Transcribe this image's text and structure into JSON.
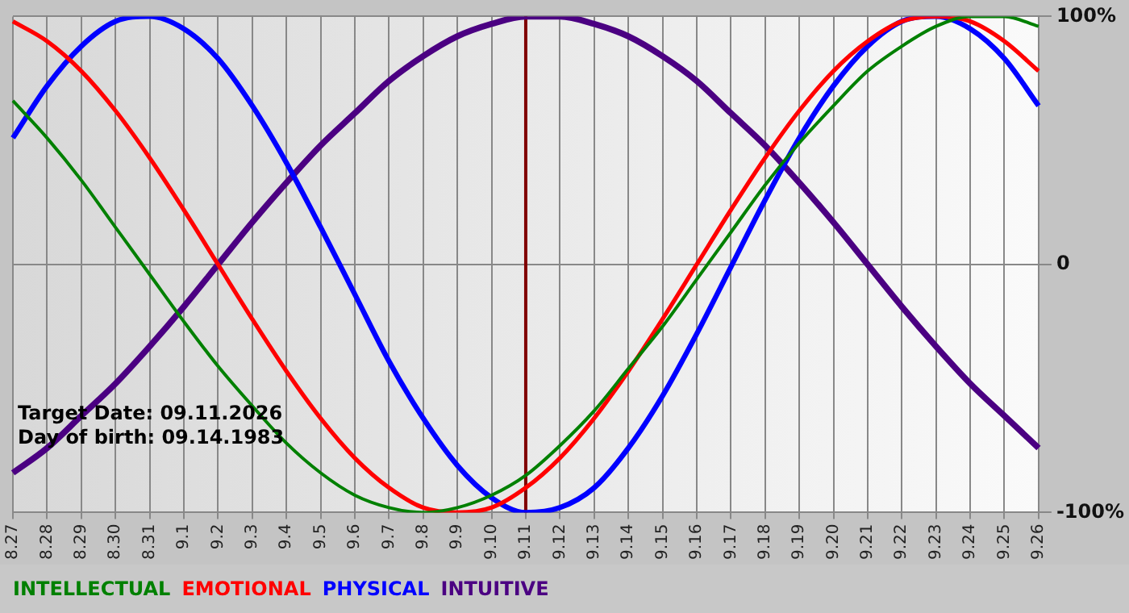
{
  "chart_data": {
    "type": "line",
    "categories": [
      "8.27",
      "8.28",
      "8.29",
      "8.30",
      "8.31",
      "9.1",
      "9.2",
      "9.3",
      "9.4",
      "9.5",
      "9.6",
      "9.7",
      "9.8",
      "9.9",
      "9.10",
      "9.11",
      "9.12",
      "9.13",
      "9.14",
      "9.15",
      "9.16",
      "9.17",
      "9.18",
      "9.19",
      "9.20",
      "9.21",
      "9.22",
      "9.23",
      "9.24",
      "9.25",
      "9.26"
    ],
    "series": [
      {
        "name": "INTELLECTUAL",
        "color": "#008000",
        "values": [
          66,
          51,
          34,
          15,
          -4,
          -23,
          -41,
          -57,
          -72,
          -84,
          -93,
          -98,
          -100,
          -98,
          -93,
          -85,
          -73,
          -59,
          -42,
          -25,
          -6,
          13,
          32,
          49,
          64,
          78,
          88,
          96,
          100,
          100,
          96
        ]
      },
      {
        "name": "EMOTIONAL",
        "color": "#ff0000",
        "values": [
          98,
          90,
          78,
          62,
          43,
          22,
          0,
          -22,
          -43,
          -62,
          -78,
          -90,
          -98,
          -100,
          -98,
          -90,
          -78,
          -62,
          -43,
          -22,
          0,
          22,
          43,
          62,
          78,
          90,
          98,
          100,
          98,
          90,
          78
        ]
      },
      {
        "name": "PHYSICAL",
        "color": "#0000ff",
        "values": [
          51,
          72,
          88,
          98,
          100,
          95,
          83,
          64,
          41,
          15,
          -12,
          -39,
          -62,
          -81,
          -94,
          -100,
          -98,
          -90,
          -74,
          -53,
          -28,
          -1,
          26,
          51,
          72,
          88,
          98,
          100,
          95,
          83,
          64
        ]
      },
      {
        "name": "INTUITIVE",
        "color": "#4b0082",
        "values": [
          -84,
          -74,
          -61,
          -48,
          -33,
          -17,
          0,
          17,
          33,
          48,
          61,
          74,
          84,
          92,
          97,
          100,
          100,
          97,
          92,
          84,
          74,
          61,
          48,
          33,
          17,
          0,
          -17,
          -33,
          -48,
          -61,
          -74
        ]
      }
    ],
    "ylim": [
      -100,
      100
    ],
    "yticks": [
      {
        "value": -100,
        "label": "-100%"
      },
      0,
      {
        "value": 100,
        "label": "100%"
      }
    ],
    "grid": true,
    "legend": "bottom",
    "marker": "none",
    "ref_lines": [
      {
        "axis": "x",
        "value": "9.11",
        "color": "#800000"
      }
    ],
    "annotations": [
      "Target Date: 09.11.2026",
      "Day of birth: 09.14.1983"
    ]
  }
}
